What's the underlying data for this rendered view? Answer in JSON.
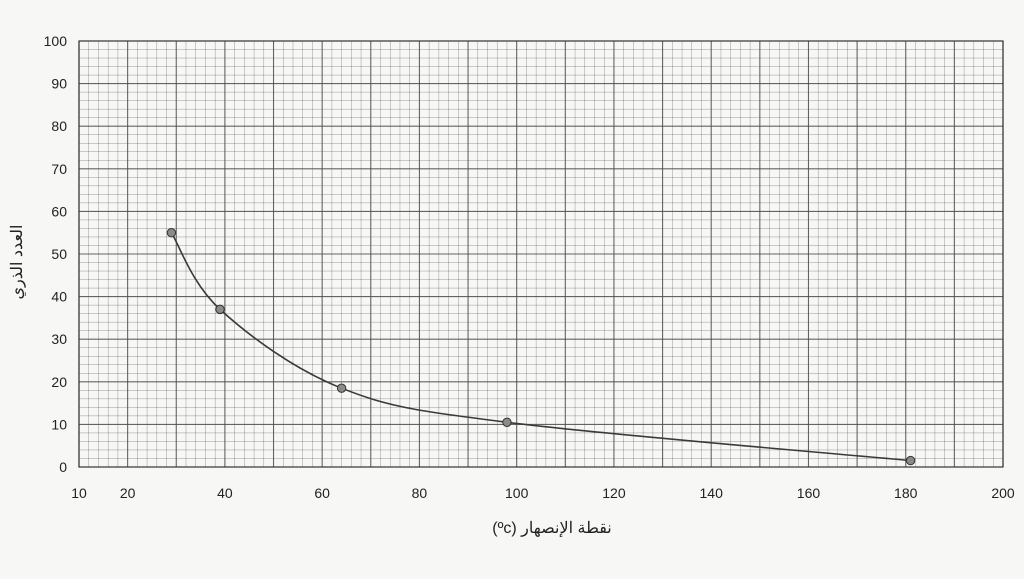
{
  "chart_data": {
    "type": "line",
    "title": "",
    "xlabel": "نقطة الإنصهار (ºc)",
    "ylabel": "العدد الذري",
    "xlim": [
      10,
      200
    ],
    "ylim": [
      0,
      100
    ],
    "x_ticks": [
      10,
      20,
      40,
      60,
      80,
      100,
      120,
      140,
      160,
      180,
      200
    ],
    "y_ticks": [
      0,
      10,
      20,
      30,
      40,
      50,
      60,
      70,
      80,
      90,
      100
    ],
    "grid": true,
    "x": [
      29,
      39,
      64,
      98,
      181
    ],
    "series": [
      {
        "values": [
          55,
          37,
          18.5,
          10.5,
          1.5
        ]
      }
    ],
    "colors": {
      "line": "#3a3a3a",
      "point": "#8a8a8a",
      "grid": "#4a4a4a"
    }
  }
}
